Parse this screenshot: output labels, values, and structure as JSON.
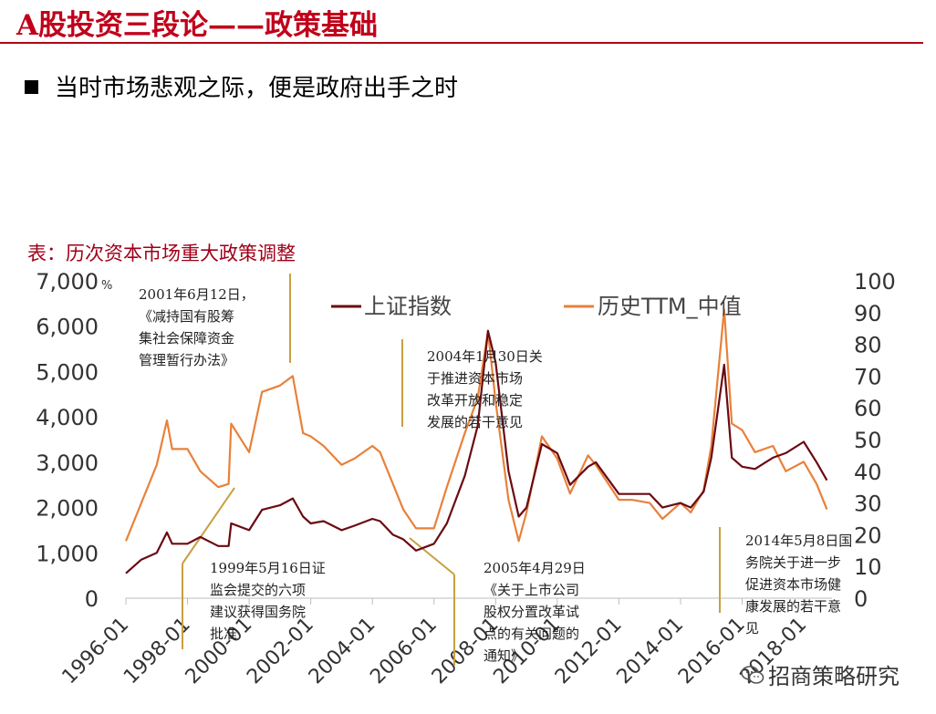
{
  "header": {
    "title": "A股投资三段论——政策基础",
    "subtitle": "当时市场悲观之际，便是政府出手之时"
  },
  "caption": "表：历次资本市场重大政策调整",
  "watermark": "招商策略研究",
  "colors": {
    "title": "#c0001a",
    "series_index": "#6b0a12",
    "series_pe": "#e8813a",
    "annotation_line": "#c8a040"
  },
  "chart_data": {
    "type": "line",
    "x": [
      "1996-01",
      "1996-07",
      "1997-01",
      "1997-05",
      "1997-07",
      "1998-01",
      "1998-06",
      "1999-01",
      "1999-05",
      "1999-06",
      "2000-01",
      "2000-06",
      "2001-01",
      "2001-06",
      "2001-10",
      "2002-01",
      "2002-06",
      "2003-01",
      "2003-06",
      "2004-01",
      "2004-04",
      "2004-09",
      "2005-01",
      "2005-06",
      "2006-01",
      "2006-06",
      "2007-01",
      "2007-06",
      "2007-10",
      "2008-01",
      "2008-06",
      "2008-10",
      "2009-01",
      "2009-07",
      "2010-01",
      "2010-06",
      "2011-01",
      "2011-04",
      "2012-01",
      "2012-06",
      "2013-01",
      "2013-06",
      "2014-01",
      "2014-05",
      "2014-10",
      "2015-01",
      "2015-06",
      "2015-09",
      "2016-01",
      "2016-06",
      "2017-01",
      "2017-06",
      "2018-01",
      "2018-06",
      "2018-10"
    ],
    "series": [
      {
        "name": "上证指数",
        "axis": "left",
        "values": [
          550,
          850,
          1000,
          1450,
          1200,
          1200,
          1350,
          1150,
          1150,
          1650,
          1500,
          1950,
          2050,
          2200,
          1800,
          1650,
          1700,
          1500,
          1600,
          1750,
          1700,
          1400,
          1300,
          1050,
          1200,
          1650,
          2700,
          3800,
          5900,
          5200,
          2800,
          1800,
          2000,
          3400,
          3200,
          2500,
          2900,
          3000,
          2300,
          2300,
          2300,
          2000,
          2100,
          2000,
          2350,
          3100,
          5150,
          3100,
          2900,
          2850,
          3100,
          3200,
          3450,
          3000,
          2600
        ]
      },
      {
        "name": "历史TTM_中值",
        "axis": "right",
        "values": [
          18,
          30,
          42,
          56,
          47,
          47,
          40,
          35,
          36,
          55,
          46,
          65,
          67,
          70,
          52,
          51,
          48,
          42,
          44,
          48,
          46,
          36,
          28,
          22,
          22,
          35,
          52,
          63,
          84,
          62,
          31,
          18,
          27,
          51,
          44,
          33,
          45,
          42,
          31,
          31,
          30,
          25,
          30,
          27,
          34,
          48,
          91,
          55,
          53,
          46,
          48,
          40,
          43,
          36,
          28
        ]
      }
    ],
    "left_axis": {
      "ticks": [
        "0",
        "1,000",
        "2,000",
        "3,000",
        "4,000",
        "5,000",
        "6,000",
        "7,000"
      ],
      "range": [
        0,
        7000
      ],
      "unit": "%"
    },
    "right_axis": {
      "ticks": [
        "0",
        "10",
        "20",
        "30",
        "40",
        "50",
        "60",
        "70",
        "80",
        "90",
        "100"
      ],
      "range": [
        0,
        100
      ]
    },
    "x_ticks": [
      "1996-01",
      "1998-01",
      "2000-01",
      "2002-01",
      "2004-01",
      "2006-01",
      "2008-01",
      "2010-01",
      "2012-01",
      "2014-01",
      "2016-01",
      "2018-01"
    ],
    "annotations": [
      {
        "date": "2001-06",
        "text": [
          "2001年6月12日，",
          "《减持国有股筹",
          "集社会保障资金",
          "管理暂行办法》"
        ]
      },
      {
        "date": "2004-01",
        "text": [
          "2004年1月30日关",
          "于推进资本市场",
          "改革开放和稳定",
          "发展的若干意见"
        ]
      },
      {
        "date": "1999-05",
        "text": [
          "1999年5月16日证",
          "监会提交的六项",
          "建议获得国务院",
          "批准"
        ]
      },
      {
        "date": "2005-04",
        "text": [
          "2005年4月29日",
          "《关于上市公司",
          "股权分置改革试",
          "点的有关问题的",
          "通知》"
        ]
      },
      {
        "date": "2014-05",
        "text": [
          "2014年5月8日国",
          "务院关于进一步",
          "促进资本市场健",
          "康发展的若干意",
          "见"
        ]
      }
    ]
  }
}
